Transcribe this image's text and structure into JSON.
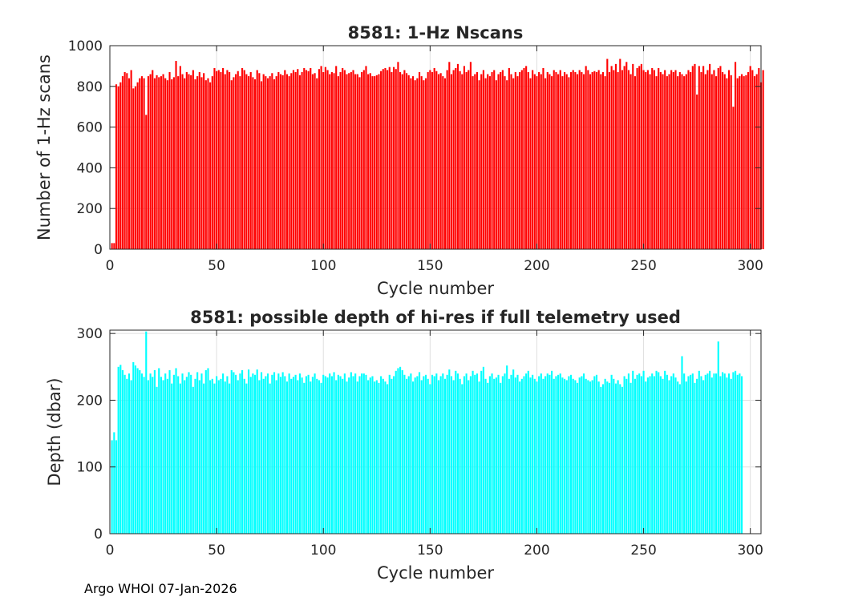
{
  "footer": "Argo WHOI 07-Jan-2026",
  "chart_data": [
    {
      "type": "bar",
      "title": "8581: 1-Hz Nscans",
      "xlabel": "Cycle number",
      "ylabel": "Number of 1-Hz scans",
      "xlim": [
        0,
        305
      ],
      "ylim": [
        0,
        1000
      ],
      "xticks": [
        0,
        50,
        100,
        150,
        200,
        250,
        300
      ],
      "yticks": [
        0,
        200,
        400,
        600,
        800,
        1000
      ],
      "grid": true,
      "color": "#ff0000",
      "x_start": 1,
      "values": [
        30,
        30,
        810,
        800,
        820,
        850,
        870,
        865,
        840,
        880,
        790,
        800,
        820,
        840,
        850,
        840,
        660,
        850,
        860,
        880,
        840,
        855,
        845,
        850,
        860,
        840,
        830,
        870,
        835,
        845,
        925,
        850,
        900,
        860,
        840,
        870,
        860,
        855,
        880,
        835,
        850,
        870,
        845,
        865,
        830,
        840,
        820,
        850,
        890,
        875,
        880,
        870,
        890,
        860,
        880,
        870,
        830,
        845,
        860,
        875,
        850,
        890,
        880,
        860,
        850,
        870,
        845,
        835,
        880,
        865,
        825,
        860,
        850,
        840,
        850,
        865,
        835,
        850,
        870,
        860,
        855,
        880,
        860,
        850,
        865,
        880,
        870,
        885,
        855,
        870,
        890,
        880,
        875,
        890,
        860,
        865,
        840,
        885,
        900,
        870,
        895,
        880,
        860,
        870,
        865,
        900,
        850,
        870,
        890,
        880,
        860,
        865,
        870,
        880,
        860,
        860,
        845,
        870,
        880,
        900,
        860,
        865,
        850,
        850,
        855,
        860,
        875,
        885,
        890,
        880,
        895,
        870,
        895,
        885,
        920,
        870,
        860,
        880,
        865,
        855,
        840,
        850,
        830,
        840,
        870,
        850,
        830,
        840,
        870,
        880,
        870,
        890,
        875,
        860,
        865,
        850,
        840,
        880,
        920,
        860,
        880,
        890,
        910,
        875,
        860,
        900,
        870,
        880,
        920,
        850,
        860,
        870,
        830,
        860,
        880,
        840,
        860,
        850,
        870,
        880,
        830,
        860,
        870,
        880,
        850,
        830,
        890,
        860,
        840,
        870,
        850,
        870,
        880,
        890,
        900,
        870,
        840,
        880,
        860,
        850,
        870,
        860,
        890,
        840,
        870,
        860,
        850,
        880,
        870,
        860,
        880,
        850,
        870,
        860,
        845,
        870,
        880,
        870,
        860,
        880,
        870,
        860,
        900,
        880,
        860,
        870,
        875,
        870,
        880,
        860,
        870,
        850,
        935,
        870,
        900,
        880,
        910,
        870,
        935,
        880,
        900,
        920,
        880,
        860,
        910,
        850,
        890,
        900,
        910,
        880,
        870,
        880,
        860,
        890,
        880,
        850,
        890,
        870,
        860,
        880,
        850,
        860,
        880,
        870,
        880,
        850,
        870,
        860,
        850,
        860,
        880,
        870,
        900,
        910,
        760,
        900,
        870,
        900,
        860,
        880,
        910,
        860,
        880,
        850,
        890,
        900,
        870,
        860,
        840,
        880,
        855,
        700,
        920,
        840,
        850,
        860,
        850,
        855,
        870,
        900,
        880,
        850,
        860,
        890,
        820,
        880
      ]
    },
    {
      "type": "bar",
      "title": "8581: possible depth of hi-res if full telemetry used",
      "xlabel": "Cycle number",
      "ylabel": "Depth (dbar)",
      "xlim": [
        0,
        305
      ],
      "ylim": [
        0,
        305
      ],
      "xticks": [
        0,
        50,
        100,
        150,
        200,
        250,
        300
      ],
      "yticks": [
        0,
        100,
        200,
        300
      ],
      "grid": true,
      "color": "#00ffff",
      "x_start": 1,
      "values": [
        140,
        152,
        140,
        250,
        253,
        245,
        238,
        232,
        240,
        230,
        257,
        252,
        248,
        245,
        240,
        235,
        303,
        230,
        240,
        235,
        245,
        220,
        248,
        235,
        230,
        240,
        232,
        245,
        225,
        238,
        248,
        236,
        225,
        240,
        230,
        235,
        242,
        238,
        220,
        232,
        242,
        230,
        240,
        225,
        245,
        248,
        230,
        232,
        225,
        236,
        230,
        232,
        240,
        228,
        236,
        225,
        245,
        242,
        238,
        230,
        240,
        245,
        232,
        225,
        246,
        235,
        240,
        238,
        246,
        230,
        242,
        232,
        236,
        240,
        225,
        238,
        242,
        230,
        240,
        235,
        242,
        236,
        228,
        240,
        232,
        235,
        238,
        230,
        240,
        234,
        226,
        236,
        238,
        228,
        235,
        240,
        232,
        230,
        226,
        238,
        236,
        234,
        240,
        236,
        242,
        230,
        238,
        236,
        232,
        240,
        228,
        234,
        242,
        236,
        240,
        228,
        236,
        240,
        240,
        238,
        230,
        234,
        236,
        228,
        230,
        226,
        236,
        232,
        228,
        224,
        238,
        232,
        236,
        244,
        248,
        250,
        245,
        238,
        232,
        236,
        240,
        228,
        234,
        236,
        242,
        230,
        236,
        238,
        232,
        224,
        238,
        236,
        240,
        230,
        236,
        240,
        232,
        238,
        246,
        236,
        230,
        244,
        240,
        232,
        224,
        236,
        240,
        230,
        236,
        244,
        238,
        240,
        228,
        244,
        250,
        232,
        226,
        236,
        240,
        232,
        234,
        238,
        226,
        236,
        240,
        252,
        232,
        238,
        246,
        234,
        238,
        228,
        232,
        236,
        240,
        244,
        234,
        238,
        232,
        228,
        236,
        240,
        232,
        236,
        240,
        238,
        244,
        232,
        236,
        238,
        240,
        234,
        232,
        230,
        236,
        238,
        232,
        230,
        226,
        234,
        236,
        240,
        232,
        230,
        228,
        230,
        236,
        238,
        228,
        220,
        224,
        232,
        228,
        226,
        238,
        232,
        225,
        230,
        224,
        220,
        236,
        232,
        240,
        226,
        244,
        232,
        238,
        240,
        236,
        244,
        228,
        234,
        236,
        240,
        236,
        244,
        242,
        236,
        232,
        244,
        238,
        230,
        236,
        240,
        234,
        228,
        224,
        266,
        240,
        228,
        236,
        238,
        240,
        226,
        232,
        244,
        236,
        230,
        238,
        240,
        244,
        234,
        240,
        240,
        288,
        236,
        242,
        240,
        234,
        240,
        232,
        242,
        244,
        238,
        240,
        236
      ]
    }
  ]
}
